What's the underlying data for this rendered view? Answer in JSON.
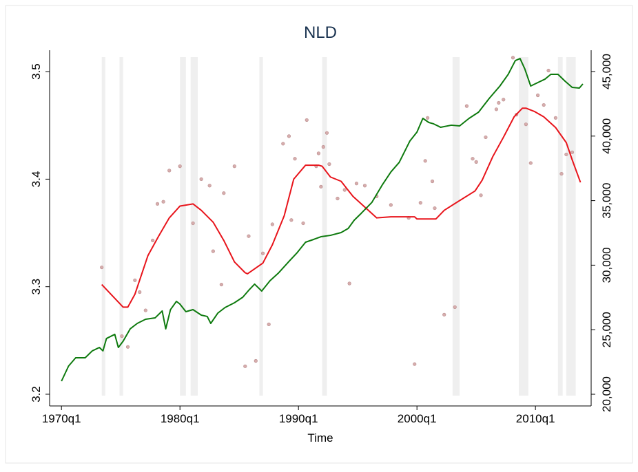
{
  "chart_data": {
    "type": "line",
    "title": "NLD",
    "xlabel": "Time",
    "xlim": [
      1969,
      2014.7
    ],
    "ylim": [
      3.1987,
      3.5135
    ],
    "y2lim": [
      19893,
      46119
    ],
    "xticks": [
      {
        "value": 1970,
        "label": "1970q1"
      },
      {
        "value": 1980,
        "label": "1980q1"
      },
      {
        "value": 1990,
        "label": "1990q1"
      },
      {
        "value": 2000,
        "label": "2000q1"
      },
      {
        "value": 2010,
        "label": "2010q1"
      }
    ],
    "yticks": [
      3.2,
      3.3,
      3.4,
      3.5
    ],
    "y2ticks": [
      {
        "value": 20000,
        "label": "20,000"
      },
      {
        "value": 25000,
        "label": "25,000"
      },
      {
        "value": 30000,
        "label": "30,000"
      },
      {
        "value": 35000,
        "label": "35,000"
      },
      {
        "value": 40000,
        "label": "40,000"
      },
      {
        "value": 45000,
        "label": "45,000"
      }
    ],
    "shaded_periods": [
      [
        1973.4,
        1973.7
      ],
      [
        1974.9,
        1975.2
      ],
      [
        1980.0,
        1980.5
      ],
      [
        1980.9,
        1981.5
      ],
      [
        1986.7,
        1987.0
      ],
      [
        1992.0,
        1992.4
      ],
      [
        2003.0,
        2003.6
      ],
      [
        2008.6,
        2009.4
      ],
      [
        2011.9,
        2012.3
      ],
      [
        2012.6,
        2013.4
      ]
    ],
    "shade_color": "#efefef",
    "series": [
      {
        "type": "scatter",
        "color": "#d6adad",
        "x": [
          1973.4,
          1975.1,
          1975.6,
          1976.2,
          1976.6,
          1977.1,
          1977.7,
          1978.1,
          1978.6,
          1979.1,
          1980.0,
          1981.1,
          1981.8,
          1982.5,
          1982.8,
          1983.5,
          1983.7,
          1984.6,
          1985.5,
          1985.8,
          1986.4,
          1987.0,
          1987.5,
          1987.8,
          1988.7,
          1989.2,
          1989.4,
          1989.7,
          1990.4,
          1990.7,
          1991.5,
          1991.7,
          1991.9,
          1992.1,
          1992.4,
          1992.6,
          1993.3,
          1993.9,
          1994.3,
          1994.9,
          1995.6,
          1996.6,
          1997.8,
          1999.3,
          1999.8,
          2000.3,
          2000.7,
          2000.9,
          2001.3,
          2001.5,
          2002.3,
          2003.2,
          2004.2,
          2004.7,
          2005.0,
          2005.4,
          2005.8,
          2006.7,
          2006.9,
          2007.3,
          2008.1,
          2008.4,
          2009.2,
          2009.6,
          2010.2,
          2010.7,
          2011.1,
          2011.7,
          2012.2,
          2012.6,
          2013.1
        ],
        "values": [
          3.318,
          3.254,
          3.244,
          3.306,
          3.295,
          3.278,
          3.343,
          3.377,
          3.379,
          3.408,
          3.412,
          3.359,
          3.4,
          3.394,
          3.333,
          3.302,
          3.387,
          3.412,
          3.226,
          3.347,
          3.231,
          3.331,
          3.265,
          3.358,
          3.433,
          3.44,
          3.362,
          3.419,
          3.359,
          3.455,
          3.412,
          3.424,
          3.393,
          3.43,
          3.443,
          3.414,
          3.382,
          3.39,
          3.303,
          3.396,
          3.394,
          3.384,
          3.376,
          3.364,
          3.228,
          3.378,
          3.417,
          3.457,
          3.398,
          3.373,
          3.274,
          3.281,
          3.468,
          3.419,
          3.416,
          3.385,
          3.439,
          3.465,
          3.471,
          3.474,
          3.513,
          3.46,
          3.451,
          3.415,
          3.478,
          3.469,
          3.501,
          3.457,
          3.405,
          3.423,
          3.425
        ]
      },
      {
        "type": "line",
        "color": "#e8141b",
        "x": [
          1973.4,
          1975.2,
          1975.6,
          1976.2,
          1977.3,
          1978.2,
          1979.1,
          1980.0,
          1981.1,
          1981.8,
          1982.8,
          1983.7,
          1984.6,
          1985.5,
          1985.7,
          1987.0,
          1987.8,
          1988.8,
          1989.6,
          1990.6,
          1991.7,
          1992.0,
          1992.7,
          1993.6,
          1994.6,
          1995.6,
          1996.6,
          1997.8,
          1999.2,
          1999.8,
          2000.0,
          2001.2,
          2001.6,
          2002.3,
          2003.3,
          2004.9,
          2005.5,
          2006.4,
          2007.3,
          2008.2,
          2008.9,
          2009.2,
          2009.9,
          2010.7,
          2011.7,
          2012.6,
          2013.1,
          2013.8
        ],
        "values": [
          3.302,
          3.281,
          3.281,
          3.293,
          3.329,
          3.347,
          3.364,
          3.375,
          3.377,
          3.371,
          3.36,
          3.343,
          3.323,
          3.313,
          3.312,
          3.322,
          3.339,
          3.366,
          3.4,
          3.413,
          3.413,
          3.412,
          3.402,
          3.398,
          3.384,
          3.374,
          3.364,
          3.365,
          3.365,
          3.365,
          3.363,
          3.363,
          3.363,
          3.371,
          3.378,
          3.389,
          3.399,
          3.421,
          3.439,
          3.458,
          3.466,
          3.466,
          3.463,
          3.458,
          3.448,
          3.434,
          3.418,
          3.397
        ]
      },
      {
        "type": "line",
        "axis": "y2",
        "color": "#0e7a0e",
        "x": [
          1970.0,
          1970.6,
          1971.2,
          1972.0,
          1972.6,
          1973.2,
          1973.5,
          1973.8,
          1974.5,
          1974.8,
          1975.2,
          1975.8,
          1976.4,
          1977.1,
          1977.9,
          1978.5,
          1978.8,
          1979.2,
          1979.7,
          1980.0,
          1980.5,
          1981.1,
          1981.8,
          1982.3,
          1982.6,
          1983.2,
          1983.8,
          1984.6,
          1985.3,
          1985.8,
          1986.3,
          1986.9,
          1987.6,
          1988.3,
          1989.2,
          1989.9,
          1990.6,
          1991.3,
          1991.9,
          1992.7,
          1993.6,
          1994.2,
          1994.7,
          1995.3,
          1996.2,
          1997.1,
          1997.8,
          1998.5,
          1999.4,
          2000.0,
          2000.5,
          2001.0,
          2001.4,
          2002.0,
          2002.9,
          2003.6,
          2004.4,
          2005.2,
          2006.1,
          2007.0,
          2007.7,
          2008.3,
          2008.7,
          2009.1,
          2009.6,
          2010.2,
          2010.8,
          2011.3,
          2011.9,
          2012.5,
          2013.1,
          2013.7,
          2014.0
        ],
        "values": [
          21013,
          22185,
          22825,
          22825,
          23360,
          23625,
          23360,
          24320,
          24640,
          23625,
          24105,
          25065,
          25490,
          25810,
          25915,
          26450,
          25065,
          26555,
          27195,
          26985,
          26395,
          26555,
          26130,
          26025,
          25490,
          26290,
          26715,
          27090,
          27515,
          28050,
          28530,
          27995,
          28795,
          29380,
          30290,
          30980,
          31780,
          32000,
          32205,
          32310,
          32525,
          32845,
          33480,
          34020,
          34870,
          36255,
          37220,
          37960,
          39615,
          40310,
          41375,
          41055,
          40950,
          40680,
          40845,
          40790,
          41375,
          41855,
          42920,
          43880,
          44785,
          45850,
          46010,
          45210,
          43880,
          44145,
          44410,
          44785,
          44785,
          44255,
          43775,
          43720,
          44040
        ]
      }
    ]
  }
}
